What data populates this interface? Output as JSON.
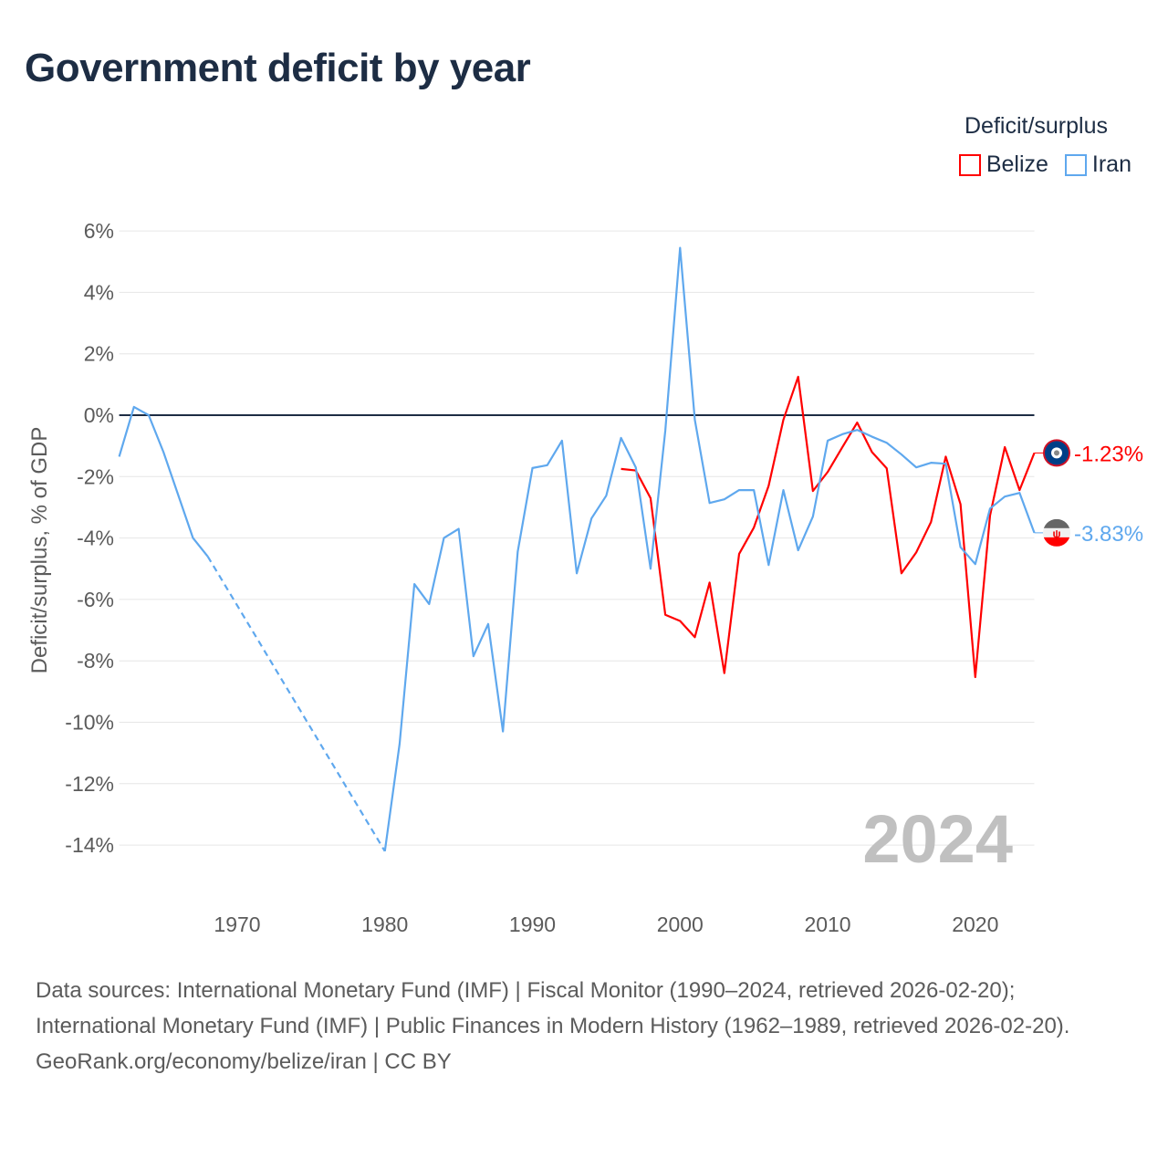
{
  "title": "Government deficit by year",
  "legend": {
    "title": "Deficit/surplus",
    "items": [
      {
        "label": "Belize",
        "color": "#ff0000"
      },
      {
        "label": "Iran",
        "color": "#5fa8ee"
      }
    ]
  },
  "year_label": "2024",
  "footer": {
    "sources": "Data sources: International Monetary Fund (IMF) | Fiscal Monitor (1990–2024, retrieved 2026-02-20); International Monetary Fund (IMF) | Public Finances in Modern History (1962–1989, retrieved 2026-02-20).",
    "credit": "GeoRank.org/economy/belize/iran | CC BY"
  },
  "chart_data": {
    "type": "line",
    "title": "Government deficit by year",
    "xlabel": "",
    "ylabel": "Deficit/surplus, % of GDP",
    "xlim": [
      1962,
      2024
    ],
    "ylim": [
      -14,
      6
    ],
    "x_ticks": [
      1970,
      1980,
      1990,
      2000,
      2010,
      2020
    ],
    "y_ticks": [
      6,
      4,
      2,
      0,
      -2,
      -4,
      -6,
      -8,
      -10,
      -12,
      -14
    ],
    "y_tick_labels": [
      "6%",
      "4%",
      "2%",
      "0%",
      "-2%",
      "-4%",
      "-6%",
      "-8%",
      "-10%",
      "-12%",
      "-14%"
    ],
    "grid": true,
    "legend_position": "top-right",
    "series": [
      {
        "name": "Belize",
        "color": "#ff0000",
        "end_label": "-1.23%",
        "x": [
          1996,
          1997,
          1998,
          1999,
          2000,
          2001,
          2002,
          2003,
          2004,
          2005,
          2006,
          2007,
          2008,
          2009,
          2010,
          2011,
          2012,
          2013,
          2014,
          2015,
          2016,
          2017,
          2018,
          2019,
          2020,
          2021,
          2022,
          2023,
          2024
        ],
        "values": [
          -1.75,
          -1.8,
          -2.7,
          -6.5,
          -6.7,
          -7.23,
          -5.45,
          -8.4,
          -4.52,
          -3.66,
          -2.3,
          -0.15,
          1.25,
          -2.47,
          -1.85,
          -1.04,
          -0.24,
          -1.2,
          -1.73,
          -5.15,
          -4.47,
          -3.48,
          -1.35,
          -2.9,
          -8.53,
          -3.27,
          -1.04,
          -2.44,
          -1.23
        ]
      },
      {
        "name": "Iran",
        "color": "#5fa8ee",
        "end_label": "-3.83%",
        "x": [
          1962,
          1963,
          1964,
          1965,
          1966,
          1967,
          1968,
          1980,
          1981,
          1982,
          1983,
          1984,
          1985,
          1986,
          1987,
          1988,
          1989,
          1990,
          1991,
          1992,
          1993,
          1994,
          1995,
          1996,
          1997,
          1998,
          1999,
          2000,
          2001,
          2002,
          2003,
          2004,
          2005,
          2006,
          2007,
          2008,
          2009,
          2010,
          2011,
          2012,
          2013,
          2014,
          2015,
          2016,
          2017,
          2018,
          2019,
          2020,
          2021,
          2022,
          2023,
          2024
        ],
        "values": [
          -1.35,
          0.27,
          0.0,
          -1.2,
          -2.6,
          -4.0,
          -4.6,
          -14.2,
          -10.7,
          -5.5,
          -6.15,
          -4.0,
          -3.7,
          -7.85,
          -6.8,
          -10.3,
          -4.45,
          -1.72,
          -1.63,
          -0.83,
          -5.15,
          -3.36,
          -2.62,
          -0.74,
          -1.7,
          -5.0,
          -0.5,
          5.45,
          -0.15,
          -2.86,
          -2.74,
          -2.44,
          -2.44,
          -4.88,
          -2.44,
          -4.4,
          -3.3,
          -0.83,
          -0.62,
          -0.48,
          -0.7,
          -0.9,
          -1.28,
          -1.7,
          -1.55,
          -1.58,
          -4.3,
          -4.85,
          -3.04,
          -2.65,
          -2.53,
          -3.83
        ]
      }
    ]
  }
}
